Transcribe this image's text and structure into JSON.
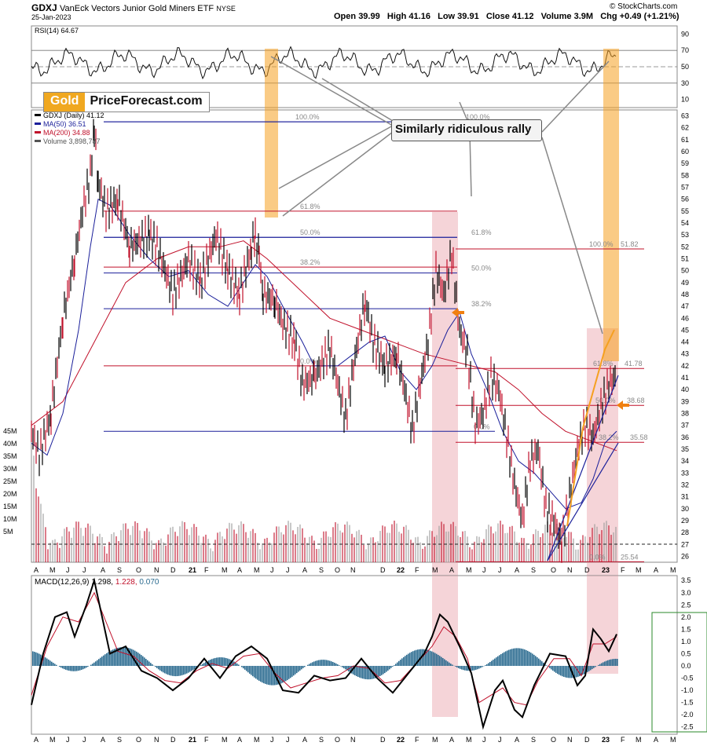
{
  "header": {
    "symbol": "GDXJ",
    "name": "VanEck Vectors Junior Gold Miners ETF",
    "exchange": "NYSE",
    "date": "25-Jan-2023",
    "source": "© StockCharts.com",
    "open_label": "Open",
    "open": "39.99",
    "high_label": "High",
    "high": "41.16",
    "low_label": "Low",
    "low": "39.91",
    "close_label": "Close",
    "close": "41.12",
    "volume_label": "Volume",
    "volume": "3.9M",
    "chg_label": "Chg",
    "chg": "+0.49 (+1.21%)"
  },
  "logo": {
    "word1": "Gold",
    "word2": "PriceForecast.com"
  },
  "colors": {
    "price_up": "#000000",
    "price_down": "#c0102a",
    "ma50": "#1a1f9a",
    "ma200": "#c0102a",
    "fib_blue": "#1a1f9a",
    "fib_red": "#c0102a",
    "highlight_orange": "#f5a020",
    "highlight_pink": "#e8a0a8",
    "macd_hist": "#2a6a8f",
    "volume_bar": "#9a9a9a"
  },
  "chart_data": [
    {
      "type": "line",
      "title": "RSI(14) 64.67",
      "series": [
        {
          "name": "RSI(14)",
          "value": 64.67
        }
      ],
      "ylim": [
        0,
        100
      ],
      "y_ticks": [
        "90",
        "70",
        "50",
        "30",
        "10"
      ],
      "guides": [
        70,
        50,
        30
      ]
    },
    {
      "type": "line",
      "title": "GDXJ (Daily) 41.12",
      "legend": [
        {
          "name": "GDXJ (Daily)",
          "value": "41.12",
          "color": "#000000"
        },
        {
          "name": "MA(50)",
          "value": "36.51",
          "color": "#1a1f9a"
        },
        {
          "name": "MA(200)",
          "value": "34.88",
          "color": "#c0102a"
        },
        {
          "name": "Volume",
          "value": "3,898,787",
          "color": "#555555"
        }
      ],
      "ylim": [
        25.5,
        63.5
      ],
      "y_ticks": [
        "63",
        "62",
        "61",
        "60",
        "59",
        "58",
        "57",
        "56",
        "55",
        "54",
        "53",
        "52",
        "51",
        "50",
        "49",
        "48",
        "47",
        "46",
        "45",
        "44",
        "43",
        "42",
        "41",
        "40",
        "39",
        "38",
        "37",
        "36",
        "35",
        "34",
        "33",
        "32",
        "31",
        "30",
        "29",
        "28",
        "27",
        "26"
      ],
      "volume_ticks": [
        "45M",
        "40M",
        "35M",
        "30M",
        "25M",
        "20M",
        "15M",
        "10M",
        "5M"
      ],
      "x_labels": [
        "A",
        "M",
        "J",
        "J",
        "A",
        "S",
        "O",
        "N",
        "D",
        "21",
        "F",
        "M",
        "A",
        "M",
        "J",
        "J",
        "A",
        "S",
        "O",
        "N",
        "D",
        "22",
        "F",
        "M",
        "A",
        "M",
        "J",
        "J",
        "A",
        "S",
        "O",
        "N",
        "D",
        "23",
        "F",
        "M",
        "A",
        "M"
      ],
      "price_path": [
        [
          0,
          36.5
        ],
        [
          10,
          34.5
        ],
        [
          25,
          38
        ],
        [
          40,
          46
        ],
        [
          55,
          51
        ],
        [
          65,
          55
        ],
        [
          75,
          58
        ],
        [
          80,
          62
        ],
        [
          85,
          57.5
        ],
        [
          95,
          55
        ],
        [
          110,
          56
        ],
        [
          125,
          52
        ],
        [
          150,
          53
        ],
        [
          160,
          52
        ],
        [
          180,
          48
        ],
        [
          200,
          51
        ],
        [
          215,
          49
        ],
        [
          235,
          53
        ],
        [
          250,
          50
        ],
        [
          265,
          48
        ],
        [
          280,
          52
        ],
        [
          285,
          53
        ],
        [
          290,
          51
        ],
        [
          295,
          48
        ],
        [
          310,
          47.5
        ],
        [
          320,
          45.5
        ],
        [
          335,
          44
        ],
        [
          345,
          40.5
        ],
        [
          360,
          41
        ],
        [
          380,
          43.5
        ],
        [
          390,
          40.5
        ],
        [
          400,
          37.5
        ],
        [
          410,
          42
        ],
        [
          425,
          47.5
        ],
        [
          435,
          44
        ],
        [
          450,
          42
        ],
        [
          465,
          43
        ],
        [
          475,
          40
        ],
        [
          485,
          36.5
        ],
        [
          495,
          40.5
        ],
        [
          505,
          44
        ],
        [
          515,
          50
        ],
        [
          525,
          48
        ],
        [
          535,
          51.5
        ],
        [
          545,
          45
        ],
        [
          555,
          43
        ],
        [
          565,
          37
        ],
        [
          575,
          38
        ],
        [
          585,
          41
        ],
        [
          595,
          40
        ],
        [
          605,
          36
        ],
        [
          615,
          32
        ],
        [
          625,
          29
        ],
        [
          635,
          34
        ],
        [
          645,
          35
        ],
        [
          655,
          30
        ],
        [
          665,
          29
        ],
        [
          675,
          27
        ],
        [
          685,
          31
        ],
        [
          695,
          35
        ],
        [
          705,
          37
        ],
        [
          715,
          36
        ],
        [
          725,
          38.5
        ],
        [
          735,
          40.5
        ],
        [
          745,
          41.12
        ]
      ],
      "ma50_path": [
        [
          0,
          35.5
        ],
        [
          20,
          34.5
        ],
        [
          40,
          38
        ],
        [
          60,
          45
        ],
        [
          75,
          52
        ],
        [
          85,
          56
        ],
        [
          100,
          55.5
        ],
        [
          125,
          53
        ],
        [
          150,
          51
        ],
        [
          175,
          49.5
        ],
        [
          200,
          50
        ],
        [
          225,
          48
        ],
        [
          250,
          47
        ],
        [
          265,
          48.5
        ],
        [
          285,
          50.5
        ],
        [
          300,
          49.5
        ],
        [
          320,
          47
        ],
        [
          345,
          44
        ],
        [
          360,
          42
        ],
        [
          390,
          42
        ],
        [
          410,
          43
        ],
        [
          430,
          44
        ],
        [
          450,
          44.5
        ],
        [
          470,
          41.5
        ],
        [
          490,
          40
        ],
        [
          510,
          42
        ],
        [
          530,
          45
        ],
        [
          545,
          46.5
        ],
        [
          560,
          43
        ],
        [
          580,
          40
        ],
        [
          600,
          36.5
        ],
        [
          620,
          34
        ],
        [
          640,
          33
        ],
        [
          660,
          31.5
        ],
        [
          680,
          30
        ],
        [
          700,
          30.5
        ],
        [
          715,
          32.5
        ],
        [
          730,
          35.5
        ],
        [
          745,
          36.51
        ]
      ],
      "ma200_path": [
        [
          0,
          37
        ],
        [
          40,
          39
        ],
        [
          80,
          44
        ],
        [
          120,
          49
        ],
        [
          160,
          51
        ],
        [
          200,
          52
        ],
        [
          240,
          52
        ],
        [
          270,
          52.5
        ],
        [
          300,
          51
        ],
        [
          340,
          48.5
        ],
        [
          380,
          46
        ],
        [
          420,
          45
        ],
        [
          460,
          44
        ],
        [
          500,
          43
        ],
        [
          530,
          42.5
        ],
        [
          560,
          42
        ],
        [
          590,
          41.5
        ],
        [
          620,
          40
        ],
        [
          650,
          38
        ],
        [
          680,
          36.5
        ],
        [
          700,
          36
        ],
        [
          720,
          35.5
        ],
        [
          745,
          34.88
        ]
      ],
      "fib_levels": [
        {
          "label": "100.0%",
          "value": 62.5,
          "color": "#1a1f9a",
          "price_label": ""
        },
        {
          "label": "61.8%",
          "value": 55.0,
          "color": "#c0102a",
          "price_label": ""
        },
        {
          "label": "50.0%",
          "value": 52.8,
          "color": "#1a1f9a",
          "price_label": ""
        },
        {
          "label": "38.2%",
          "value": 50.3,
          "color": "#c0102a",
          "price_label": ""
        },
        {
          "label": "100.0%",
          "value": 62.5,
          "color": "#1a1f9a",
          "price_label": ""
        },
        {
          "label": "61.8%",
          "value": 52.8,
          "color": "#1a1f9a",
          "price_label": ""
        },
        {
          "label": "50.0%",
          "value": 49.8,
          "color": "#1a1f9a",
          "price_label": ""
        },
        {
          "label": "38.2%",
          "value": 46.8,
          "color": "#1a1f9a",
          "price_label": ""
        },
        {
          "label": "0.0%",
          "value": 42.0,
          "color": "#c0102a",
          "price_label": ""
        },
        {
          "label": "0.0%",
          "value": 36.5,
          "color": "#1a1f9a",
          "price_label": ""
        },
        {
          "label": "100.0%",
          "value": 51.82,
          "color": "#c0102a",
          "price_label": "51.82"
        },
        {
          "label": "61.8%",
          "value": 41.78,
          "color": "#c0102a",
          "price_label": "41.78"
        },
        {
          "label": "50.0%",
          "value": 38.68,
          "color": "#c0102a",
          "price_label": "38.68"
        },
        {
          "label": "38.2%",
          "value": 35.58,
          "color": "#c0102a",
          "price_label": "35.58"
        },
        {
          "label": "0.0%",
          "value": 25.54,
          "color": "#c0102a",
          "price_label": "25.54"
        }
      ]
    },
    {
      "type": "bar",
      "title": "MACD(12,26,9) 1.298, 1.228, 0.070",
      "series": [
        {
          "name": "MACD(12,26,9)",
          "value": "1.298",
          "color": "#000000"
        },
        {
          "name": "",
          "value": "1.228",
          "color": "#c0102a"
        },
        {
          "name": "",
          "value": "0.070",
          "color": "#2a6a8f"
        }
      ],
      "ylim": [
        -2.8,
        3.7
      ],
      "y_ticks": [
        "3.5",
        "3.0",
        "2.5",
        "2.0",
        "1.5",
        "1.0",
        "0.5",
        "0.0",
        "-0.5",
        "-1.0",
        "-1.5",
        "-2.0",
        "-2.5"
      ],
      "x_labels": [
        "A",
        "M",
        "J",
        "J",
        "A",
        "S",
        "O",
        "N",
        "D",
        "21",
        "F",
        "M",
        "A",
        "M",
        "J",
        "J",
        "A",
        "S",
        "O",
        "N",
        "D",
        "22",
        "F",
        "M",
        "A",
        "M",
        "J",
        "J",
        "A",
        "S",
        "O",
        "N",
        "D",
        "23",
        "F",
        "M",
        "A",
        "M"
      ],
      "macd_path": [
        [
          0,
          -1.6
        ],
        [
          15,
          0.5
        ],
        [
          30,
          2
        ],
        [
          45,
          2.2
        ],
        [
          55,
          1.2
        ],
        [
          70,
          2.5
        ],
        [
          80,
          3.5
        ],
        [
          90,
          2
        ],
        [
          100,
          0.5
        ],
        [
          120,
          0.8
        ],
        [
          140,
          -0.2
        ],
        [
          160,
          -0.5
        ],
        [
          180,
          -1
        ],
        [
          200,
          -0.5
        ],
        [
          220,
          0.3
        ],
        [
          240,
          -0.5
        ],
        [
          260,
          0.4
        ],
        [
          280,
          0.8
        ],
        [
          300,
          0.3
        ],
        [
          320,
          -1
        ],
        [
          340,
          -1.1
        ],
        [
          360,
          -0.4
        ],
        [
          380,
          -0.6
        ],
        [
          400,
          -0.5
        ],
        [
          420,
          0.3
        ],
        [
          440,
          -0.5
        ],
        [
          460,
          -1.1
        ],
        [
          480,
          -0.3
        ],
        [
          500,
          0.5
        ],
        [
          510,
          1.2
        ],
        [
          520,
          2.1
        ],
        [
          530,
          1.8
        ],
        [
          545,
          0.8
        ],
        [
          560,
          -0.3
        ],
        [
          575,
          -2.5
        ],
        [
          590,
          -1
        ],
        [
          600,
          -0.6
        ],
        [
          615,
          -1.8
        ],
        [
          625,
          -2.1
        ],
        [
          640,
          -0.8
        ],
        [
          660,
          0.5
        ],
        [
          680,
          0.4
        ],
        [
          695,
          -0.8
        ],
        [
          705,
          -0.4
        ],
        [
          715,
          1.5
        ],
        [
          725,
          1.1
        ],
        [
          735,
          0.6
        ],
        [
          745,
          1.3
        ]
      ],
      "signal_path": [
        [
          0,
          -1.2
        ],
        [
          20,
          0.8
        ],
        [
          40,
          2
        ],
        [
          60,
          1.8
        ],
        [
          80,
          3
        ],
        [
          95,
          1.8
        ],
        [
          110,
          0.6
        ],
        [
          130,
          0.4
        ],
        [
          150,
          -0.2
        ],
        [
          170,
          -0.6
        ],
        [
          190,
          -0.7
        ],
        [
          210,
          -0.2
        ],
        [
          230,
          0.1
        ],
        [
          250,
          -0.1
        ],
        [
          270,
          0.4
        ],
        [
          290,
          0.5
        ],
        [
          310,
          -0.3
        ],
        [
          330,
          -0.9
        ],
        [
          350,
          -0.7
        ],
        [
          370,
          -0.5
        ],
        [
          390,
          -0.4
        ],
        [
          410,
          0
        ],
        [
          430,
          -0.1
        ],
        [
          450,
          -0.7
        ],
        [
          470,
          -0.6
        ],
        [
          490,
          0.1
        ],
        [
          510,
          0.8
        ],
        [
          525,
          1.6
        ],
        [
          540,
          1.2
        ],
        [
          555,
          0.3
        ],
        [
          570,
          -1.5
        ],
        [
          585,
          -1.2
        ],
        [
          600,
          -0.9
        ],
        [
          615,
          -1.5
        ],
        [
          630,
          -1.6
        ],
        [
          645,
          -0.6
        ],
        [
          665,
          0.3
        ],
        [
          685,
          0.3
        ],
        [
          700,
          -0.4
        ],
        [
          715,
          0.9
        ],
        [
          730,
          0.9
        ],
        [
          745,
          1.2
        ]
      ],
      "zero": 0
    }
  ],
  "annotations": {
    "callout": "Similarly ridiculous rally",
    "small_box_legend": ""
  }
}
